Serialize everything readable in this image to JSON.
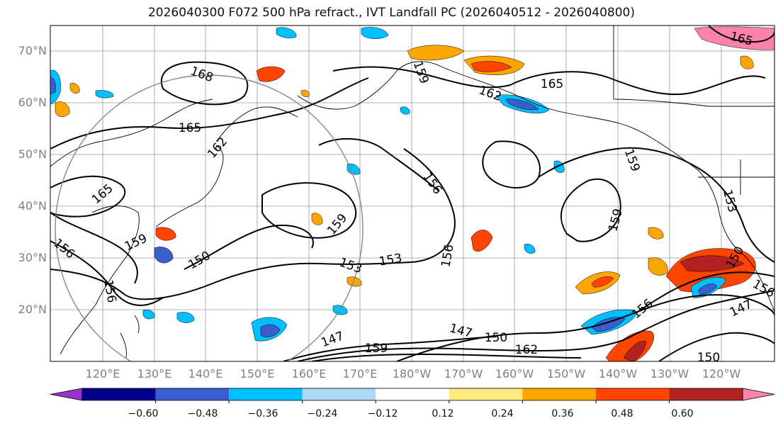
{
  "title": "2026040300 F072 500 hPa refract., IVT Landfall PC (2026040512 - 2026040800)",
  "lat_ticks": [
    "70°N",
    "60°N",
    "50°N",
    "40°N",
    "30°N",
    "20°N"
  ],
  "lon_ticks": [
    "120°E",
    "130°E",
    "140°E",
    "150°E",
    "160°E",
    "170°E",
    "180°W",
    "170°W",
    "160°W",
    "150°W",
    "140°W",
    "130°W",
    "120°W"
  ],
  "contour_labels": [
    "168",
    "165",
    "162",
    "165",
    "159",
    "156",
    "150",
    "153",
    "153",
    "156",
    "147",
    "150",
    "159",
    "162",
    "147",
    "150",
    "156",
    "159",
    "153",
    "159",
    "165",
    "165",
    "162",
    "159",
    "156",
    "159",
    "156",
    "147",
    "150",
    "156"
  ],
  "colorbar": {
    "ticks": [
      "−0.60",
      "−0.48",
      "−0.36",
      "−0.24",
      "−0.12",
      "0.12",
      "0.24",
      "0.36",
      "0.48",
      "0.60"
    ],
    "colors": [
      "#9932CC",
      "#00008B",
      "#3A5FCD",
      "#00BFFF",
      "#ADD8F6",
      "#FFFFFF",
      "#FFE87C",
      "#FFA500",
      "#FF4500",
      "#B22222",
      "#FF82AB"
    ]
  }
}
